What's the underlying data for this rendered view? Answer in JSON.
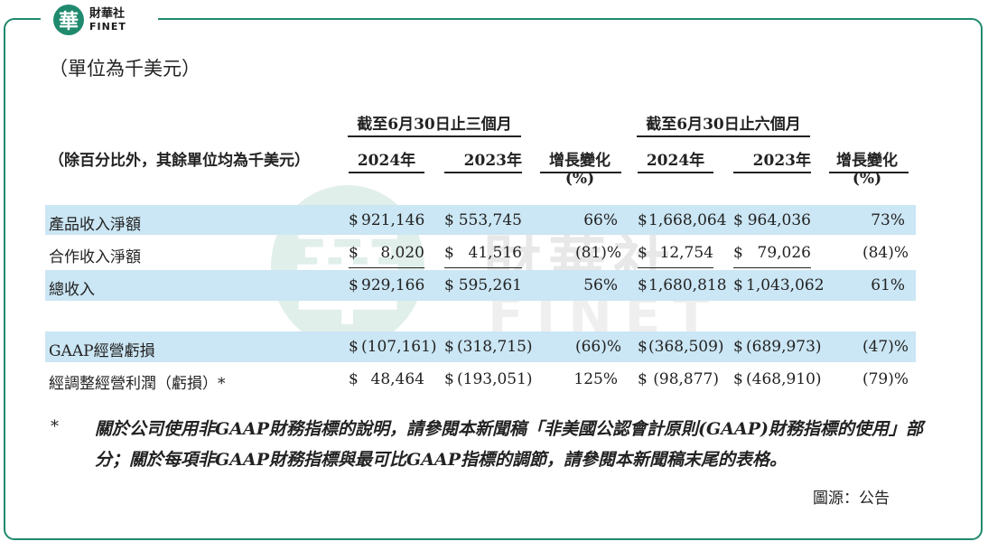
{
  "logo": {
    "glyph": "華",
    "cn": "財華社",
    "en": "FINET"
  },
  "watermark": {
    "glyph": "華",
    "cn": "財華社",
    "en": "FINET"
  },
  "unit_title": "（單位為千美元）",
  "subnote": "（除百分比外，其餘單位均為千美元）",
  "period_three": "截至6月30日止三個月",
  "period_six": "截至6月30日止六個月",
  "columns": {
    "y2024_a": "2024年",
    "y2023_a": "2023年",
    "chg_a": "增長變化(%)",
    "y2024_b": "2024年",
    "y2023_b": "2023年",
    "chg_b": "增長變化(%)"
  },
  "rows": [
    {
      "label": "產品收入淨額",
      "c1": "921,146",
      "c2": "553,745",
      "c3": "66%",
      "c4": "1,668,064",
      "c5": "964,036",
      "c6": "73%"
    },
    {
      "label": "合作收入淨額",
      "c1": "8,020",
      "c2": "41,516",
      "c3": "(81)%",
      "c4": "12,754",
      "c5": "79,026",
      "c6": "(84)%"
    },
    {
      "label": "總收入",
      "c1": "929,166",
      "c2": "595,261",
      "c3": "56%",
      "c4": "1,680,818",
      "c5": "1,043,062",
      "c6": "61%"
    },
    {
      "label": "GAAP經營虧損",
      "c1": "(107,161)",
      "c2": "(318,715)",
      "c3": "(66)%",
      "c4": "(368,509)",
      "c5": "(689,973)",
      "c6": "(47)%"
    },
    {
      "label": "經調整經營利潤（虧損）*",
      "c1": "48,464",
      "c2": "(193,051)",
      "c3": "125%",
      "c4": "(98,877)",
      "c5": "(468,910)",
      "c6": "(79)%"
    }
  ],
  "currency_symbol": "$",
  "footnote_star": "*",
  "footnote": "關於公司使用非GAAP財務指標的說明，請參閱本新聞稿「非美國公認會計原則(GAAP)財務指標的使用」部分；關於每項非GAAP財務指標與最可比GAAP指標的調節，請參閱本新聞稿末尾的表格。",
  "source": "圖源：公告"
}
